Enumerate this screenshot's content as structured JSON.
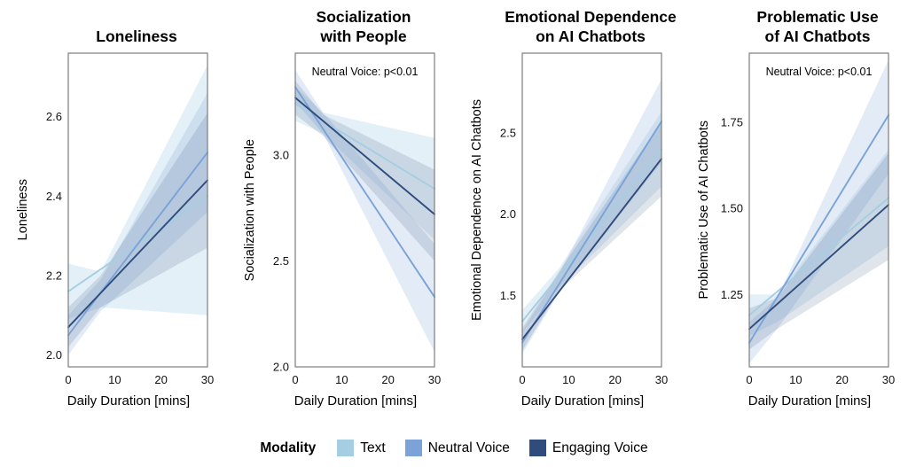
{
  "figure": {
    "x_axis_label": "Daily Duration [mins]",
    "colors": {
      "text": "#a6cee3",
      "neutral": "#7ba3d8",
      "engaging": "#2f4c7c"
    },
    "legend": {
      "title": "Modality",
      "items": [
        {
          "label": "Text",
          "color": "#a6cee3"
        },
        {
          "label": "Neutral Voice",
          "color": "#7ba3d8"
        },
        {
          "label": "Engaging Voice",
          "color": "#2f4c7c"
        }
      ]
    }
  },
  "chart_data": [
    {
      "type": "line",
      "title": "Loneliness",
      "ylabel": "Loneliness",
      "xlabel": "Daily Duration [mins]",
      "annotation": "",
      "xlim": [
        0,
        30
      ],
      "xticks": [
        0,
        10,
        20,
        30
      ],
      "ylim": [
        1.97,
        2.76
      ],
      "yticks": [
        2.0,
        2.2,
        2.4,
        2.6
      ],
      "ytick_labels": [
        "2.0",
        "2.2",
        "2.4",
        "2.6"
      ],
      "grid": false,
      "series": [
        {
          "name": "Text",
          "color_key": "text",
          "band_opacity": 0.3,
          "x": [
            0,
            30
          ],
          "y": [
            2.16,
            2.4
          ],
          "band": {
            "x": [
              0,
              7,
              30
            ],
            "lo": [
              2.09,
              2.12,
              2.1
            ],
            "hi": [
              2.23,
              2.21,
              2.73
            ]
          }
        },
        {
          "name": "Neutral Voice",
          "color_key": "neutral",
          "band_opacity": 0.22,
          "x": [
            0,
            30
          ],
          "y": [
            2.05,
            2.51
          ],
          "band": {
            "x": [
              0,
              7,
              30
            ],
            "lo": [
              2.0,
              2.11,
              2.36
            ],
            "hi": [
              2.1,
              2.19,
              2.66
            ]
          }
        },
        {
          "name": "Engaging Voice",
          "color_key": "engaging",
          "band_opacity": 0.15,
          "x": [
            0,
            30
          ],
          "y": [
            2.07,
            2.44
          ],
          "band": {
            "x": [
              0,
              7,
              30
            ],
            "lo": [
              2.02,
              2.12,
              2.27
            ],
            "hi": [
              2.12,
              2.2,
              2.61
            ]
          }
        }
      ]
    },
    {
      "type": "line",
      "title": "Socialization\nwith People",
      "ylabel": "Socialization with People",
      "xlabel": "Daily Duration [mins]",
      "annotation": "Neutral Voice: p<0.01",
      "xlim": [
        0,
        30
      ],
      "xticks": [
        0,
        10,
        20,
        30
      ],
      "ylim": [
        2.0,
        3.48
      ],
      "yticks": [
        2.0,
        2.5,
        3.0
      ],
      "ytick_labels": [
        "2.0",
        "2.5",
        "3.0"
      ],
      "grid": false,
      "series": [
        {
          "name": "Text",
          "color_key": "text",
          "band_opacity": 0.3,
          "x": [
            0,
            30
          ],
          "y": [
            3.24,
            2.84
          ],
          "band": {
            "x": [
              0,
              6,
              30
            ],
            "lo": [
              3.16,
              3.1,
              2.6
            ],
            "hi": [
              3.32,
              3.2,
              3.08
            ]
          }
        },
        {
          "name": "Neutral Voice",
          "color_key": "neutral",
          "band_opacity": 0.22,
          "x": [
            0,
            30
          ],
          "y": [
            3.32,
            2.33
          ],
          "band": {
            "x": [
              0,
              6,
              30
            ],
            "lo": [
              3.25,
              3.1,
              2.07
            ],
            "hi": [
              3.4,
              3.2,
              2.58
            ]
          }
        },
        {
          "name": "Engaging Voice",
          "color_key": "engaging",
          "band_opacity": 0.15,
          "x": [
            0,
            30
          ],
          "y": [
            3.27,
            2.72
          ],
          "band": {
            "x": [
              0,
              6,
              30
            ],
            "lo": [
              3.19,
              3.09,
              2.5
            ],
            "hi": [
              3.35,
              3.19,
              2.93
            ]
          }
        }
      ]
    },
    {
      "type": "line",
      "title": "Emotional Dependence\non AI Chatbots",
      "ylabel": "Emotional Dependence on AI Chatbots",
      "xlabel": "Daily Duration [mins]",
      "annotation": "",
      "xlim": [
        0,
        30
      ],
      "xticks": [
        0,
        10,
        20,
        30
      ],
      "ylim": [
        1.06,
        2.99
      ],
      "yticks": [
        1.5,
        2.0,
        2.5
      ],
      "ytick_labels": [
        "1.5",
        "2.0",
        "2.5"
      ],
      "grid": false,
      "series": [
        {
          "name": "Text",
          "color_key": "text",
          "band_opacity": 0.3,
          "x": [
            0,
            30
          ],
          "y": [
            1.34,
            2.4
          ],
          "band": {
            "x": [
              0,
              8,
              30
            ],
            "lo": [
              1.27,
              1.55,
              2.17
            ],
            "hi": [
              1.41,
              1.67,
              2.63
            ]
          }
        },
        {
          "name": "Neutral Voice",
          "color_key": "neutral",
          "band_opacity": 0.22,
          "x": [
            0,
            30
          ],
          "y": [
            1.21,
            2.57
          ],
          "band": {
            "x": [
              0,
              8,
              30
            ],
            "lo": [
              1.14,
              1.52,
              2.32
            ],
            "hi": [
              1.28,
              1.64,
              2.83
            ]
          }
        },
        {
          "name": "Engaging Voice",
          "color_key": "engaging",
          "band_opacity": 0.15,
          "x": [
            0,
            30
          ],
          "y": [
            1.23,
            2.34
          ],
          "band": {
            "x": [
              0,
              8,
              30
            ],
            "lo": [
              1.16,
              1.53,
              2.11
            ],
            "hi": [
              1.3,
              1.65,
              2.57
            ]
          }
        }
      ]
    },
    {
      "type": "line",
      "title": "Problematic Use\nof AI Chatbots",
      "ylabel": "Problematic Use of AI Chatbots",
      "xlabel": "Daily Duration [mins]",
      "annotation": "Neutral Voice: p<0.01",
      "xlim": [
        0,
        30
      ],
      "xticks": [
        0,
        10,
        20,
        30
      ],
      "ylim": [
        1.04,
        1.95
      ],
      "yticks": [
        1.25,
        1.5,
        1.75
      ],
      "ytick_labels": [
        "1.25",
        "1.50",
        "1.75"
      ],
      "grid": false,
      "series": [
        {
          "name": "Text",
          "color_key": "text",
          "band_opacity": 0.3,
          "x": [
            0,
            30
          ],
          "y": [
            1.19,
            1.53
          ],
          "band": {
            "x": [
              0,
              6,
              30
            ],
            "lo": [
              1.13,
              1.17,
              1.39
            ],
            "hi": [
              1.25,
              1.25,
              1.67
            ]
          }
        },
        {
          "name": "Neutral Voice",
          "color_key": "neutral",
          "band_opacity": 0.22,
          "x": [
            0,
            30
          ],
          "y": [
            1.11,
            1.77
          ],
          "band": {
            "x": [
              0,
              6,
              30
            ],
            "lo": [
              1.05,
              1.15,
              1.6
            ],
            "hi": [
              1.17,
              1.24,
              1.93
            ]
          }
        },
        {
          "name": "Engaging Voice",
          "color_key": "engaging",
          "band_opacity": 0.15,
          "x": [
            0,
            30
          ],
          "y": [
            1.15,
            1.51
          ],
          "band": {
            "x": [
              0,
              6,
              30
            ],
            "lo": [
              1.09,
              1.15,
              1.35
            ],
            "hi": [
              1.21,
              1.24,
              1.66
            ]
          }
        }
      ]
    }
  ]
}
